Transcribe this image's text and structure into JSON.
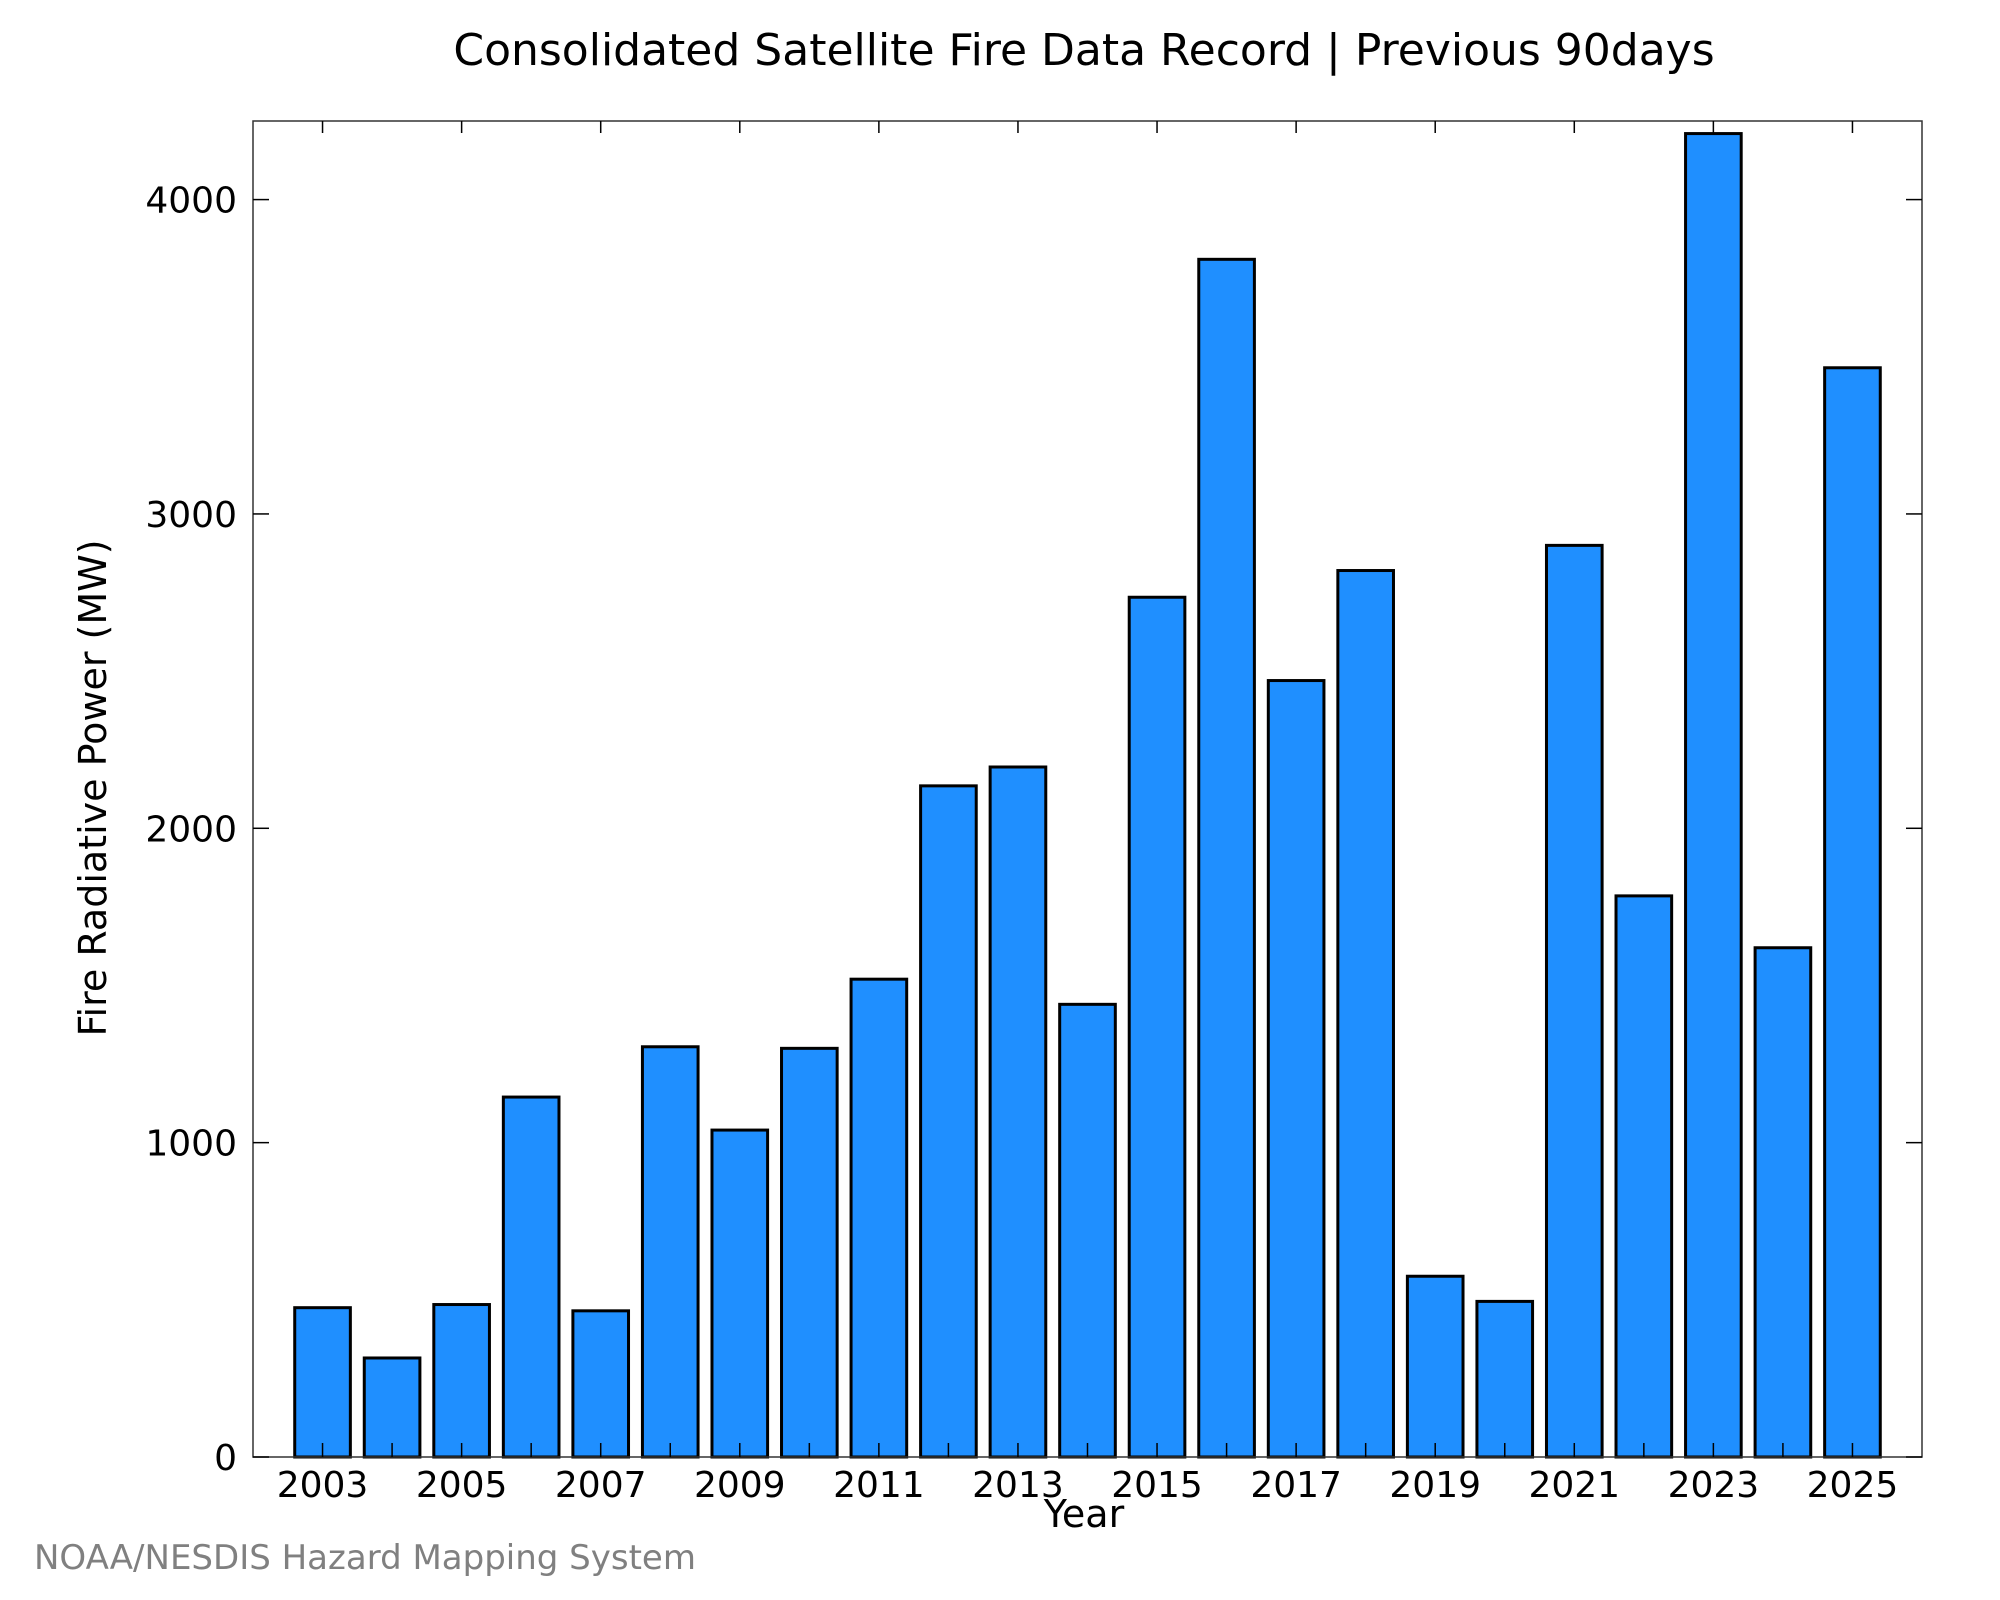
{
  "chart_data": {
    "type": "bar",
    "title": "Consolidated Satellite Fire Data Record | Previous 90days",
    "xlabel": "Year",
    "ylabel": "Fire Radiative Power (MW)",
    "categories": [
      "2003",
      "2004",
      "2005",
      "2006",
      "2007",
      "2008",
      "2009",
      "2010",
      "2011",
      "2012",
      "2013",
      "2014",
      "2015",
      "2016",
      "2017",
      "2018",
      "2019",
      "2020",
      "2021",
      "2022",
      "2023",
      "2024",
      "2025"
    ],
    "values": [
      475,
      315,
      485,
      1145,
      465,
      1305,
      1040,
      1300,
      1520,
      2135,
      2195,
      1440,
      2735,
      3810,
      2470,
      2820,
      575,
      495,
      2900,
      1785,
      4210,
      1620,
      3465
    ],
    "ylim": [
      0,
      4250
    ],
    "yticks": [
      0,
      1000,
      2000,
      3000,
      4000
    ],
    "xtick_labels": [
      "2003",
      "2005",
      "2007",
      "2009",
      "2011",
      "2013",
      "2015",
      "2017",
      "2019",
      "2021",
      "2023",
      "2025"
    ],
    "grid": false,
    "bar_color": "#1f8fff"
  },
  "footer": {
    "credit": "NOAA/NESDIS Hazard Mapping System"
  }
}
